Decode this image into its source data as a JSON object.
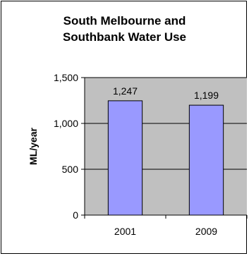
{
  "colors": {
    "plot_background": "#c0c0c0",
    "bar_fill": "#9999ff",
    "bar_stroke": "#000000",
    "gridline": "#000000",
    "frame": "#000000"
  },
  "chart_data": {
    "type": "bar",
    "title_lines": [
      "South Melbourne and",
      "Southbank Water Use"
    ],
    "categories": [
      "2001",
      "2009"
    ],
    "values": [
      1247,
      1199
    ],
    "data_labels": [
      "1,247",
      "1,199"
    ],
    "xlabel": "",
    "ylabel": "ML/year",
    "ylim": [
      0,
      1500
    ],
    "yticks": [
      0,
      500,
      1000,
      1500
    ],
    "ytick_labels": [
      "0",
      "500",
      "1,000",
      "1,500"
    ],
    "grid": true,
    "legend": "none"
  }
}
